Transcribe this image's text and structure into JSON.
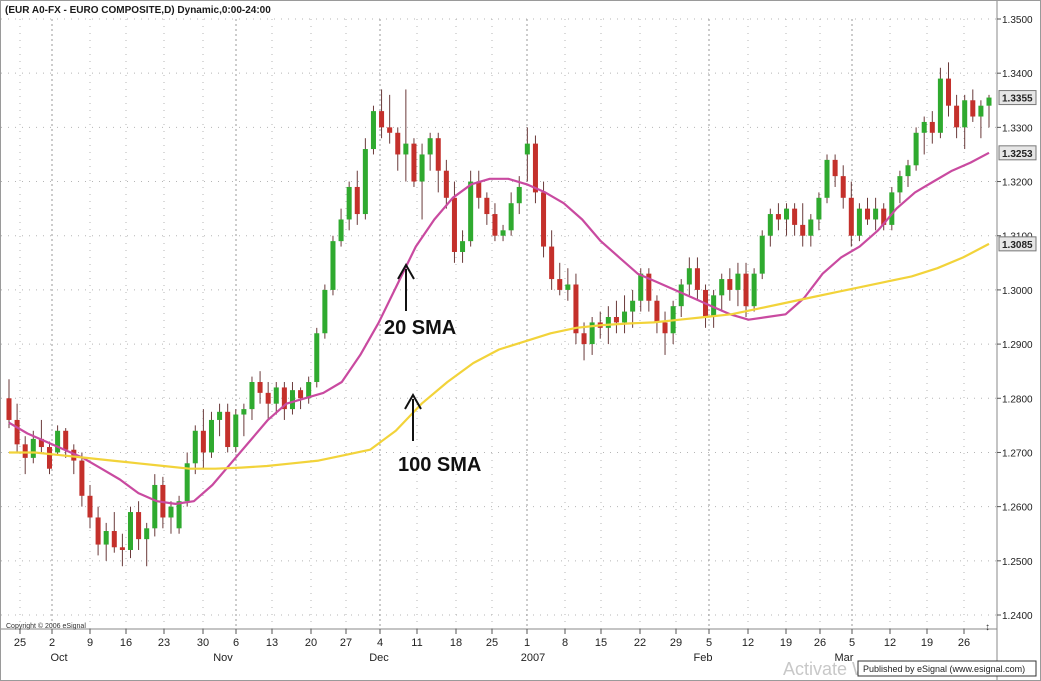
{
  "chart_data": {
    "type": "candlestick",
    "title": "(EUR A0-FX - EURO COMPOSITE,D) Dynamic,0:00-24:00",
    "ylim": [
      1.24,
      1.35
    ],
    "grid": true,
    "y_ticks": [
      "1.3500",
      "1.3400",
      "1.3300",
      "1.3200",
      "1.3100",
      "1.3000",
      "1.2900",
      "1.2800",
      "1.2700",
      "1.2600",
      "1.2500",
      "1.2400"
    ],
    "price_labels": [
      "1.3355",
      "1.3253",
      "1.3085"
    ],
    "x_tick_labels": [
      "25",
      "2",
      "9",
      "16",
      "23",
      "30",
      "6",
      "13",
      "20",
      "27",
      "4",
      "11",
      "18",
      "25",
      "1",
      "8",
      "15",
      "22",
      "29",
      "5",
      "12",
      "19",
      "26",
      "5",
      "12",
      "19",
      "26"
    ],
    "month_labels": [
      "Oct",
      "Nov",
      "Dec",
      "2007",
      "Feb",
      "Mar"
    ],
    "candles": [
      [
        1.28,
        1.2835,
        1.2745,
        1.276
      ],
      [
        1.276,
        1.279,
        1.27,
        1.2715
      ],
      [
        1.2715,
        1.273,
        1.266,
        1.269
      ],
      [
        1.269,
        1.274,
        1.268,
        1.2725
      ],
      [
        1.2725,
        1.276,
        1.27,
        1.271
      ],
      [
        1.271,
        1.272,
        1.266,
        1.267
      ],
      [
        1.27,
        1.275,
        1.2695,
        1.274
      ],
      [
        1.274,
        1.2745,
        1.269,
        1.2705
      ],
      [
        1.2705,
        1.2715,
        1.266,
        1.2685
      ],
      [
        1.2685,
        1.27,
        1.26,
        1.262
      ],
      [
        1.262,
        1.264,
        1.256,
        1.258
      ],
      [
        1.258,
        1.26,
        1.251,
        1.253
      ],
      [
        1.253,
        1.257,
        1.25,
        1.2555
      ],
      [
        1.2555,
        1.259,
        1.2515,
        1.2525
      ],
      [
        1.2525,
        1.255,
        1.249,
        1.252
      ],
      [
        1.252,
        1.26,
        1.2505,
        1.259
      ],
      [
        1.259,
        1.261,
        1.252,
        1.254
      ],
      [
        1.254,
        1.257,
        1.249,
        1.256
      ],
      [
        1.256,
        1.266,
        1.2545,
        1.264
      ],
      [
        1.264,
        1.2655,
        1.256,
        1.258
      ],
      [
        1.258,
        1.261,
        1.255,
        1.26
      ],
      [
        1.256,
        1.262,
        1.255,
        1.261
      ],
      [
        1.261,
        1.27,
        1.26,
        1.268
      ],
      [
        1.268,
        1.275,
        1.266,
        1.274
      ],
      [
        1.274,
        1.278,
        1.267,
        1.27
      ],
      [
        1.27,
        1.2775,
        1.269,
        1.276
      ],
      [
        1.276,
        1.279,
        1.273,
        1.2775
      ],
      [
        1.2775,
        1.279,
        1.27,
        1.271
      ],
      [
        1.271,
        1.278,
        1.27,
        1.277
      ],
      [
        1.277,
        1.279,
        1.273,
        1.278
      ],
      [
        1.278,
        1.284,
        1.276,
        1.283
      ],
      [
        1.283,
        1.285,
        1.279,
        1.281
      ],
      [
        1.281,
        1.283,
        1.276,
        1.279
      ],
      [
        1.279,
        1.283,
        1.277,
        1.282
      ],
      [
        1.282,
        1.283,
        1.276,
        1.278
      ],
      [
        1.278,
        1.283,
        1.277,
        1.2815
      ],
      [
        1.2815,
        1.282,
        1.278,
        1.28
      ],
      [
        1.28,
        1.284,
        1.279,
        1.283
      ],
      [
        1.283,
        1.293,
        1.282,
        1.292
      ],
      [
        1.292,
        1.301,
        1.291,
        1.3
      ],
      [
        1.3,
        1.31,
        1.299,
        1.309
      ],
      [
        1.309,
        1.315,
        1.308,
        1.313
      ],
      [
        1.313,
        1.32,
        1.311,
        1.319
      ],
      [
        1.319,
        1.322,
        1.312,
        1.314
      ],
      [
        1.314,
        1.328,
        1.313,
        1.326
      ],
      [
        1.326,
        1.334,
        1.325,
        1.333
      ],
      [
        1.333,
        1.337,
        1.328,
        1.33
      ],
      [
        1.33,
        1.336,
        1.327,
        1.329
      ],
      [
        1.329,
        1.33,
        1.322,
        1.325
      ],
      [
        1.325,
        1.337,
        1.32,
        1.327
      ],
      [
        1.327,
        1.328,
        1.319,
        1.32
      ],
      [
        1.32,
        1.327,
        1.313,
        1.325
      ],
      [
        1.325,
        1.329,
        1.322,
        1.328
      ],
      [
        1.328,
        1.329,
        1.318,
        1.322
      ],
      [
        1.322,
        1.324,
        1.315,
        1.317
      ],
      [
        1.317,
        1.32,
        1.305,
        1.307
      ],
      [
        1.307,
        1.311,
        1.305,
        1.309
      ],
      [
        1.309,
        1.322,
        1.308,
        1.32
      ],
      [
        1.32,
        1.322,
        1.315,
        1.317
      ],
      [
        1.317,
        1.318,
        1.312,
        1.314
      ],
      [
        1.314,
        1.316,
        1.309,
        1.31
      ],
      [
        1.31,
        1.312,
        1.309,
        1.311
      ],
      [
        1.311,
        1.318,
        1.31,
        1.316
      ],
      [
        1.316,
        1.321,
        1.314,
        1.319
      ],
      [
        1.325,
        1.33,
        1.32,
        1.327
      ],
      [
        1.327,
        1.3285,
        1.316,
        1.318
      ],
      [
        1.318,
        1.32,
        1.306,
        1.308
      ],
      [
        1.308,
        1.311,
        1.3,
        1.302
      ],
      [
        1.302,
        1.305,
        1.299,
        1.3
      ],
      [
        1.3,
        1.304,
        1.298,
        1.301
      ],
      [
        1.301,
        1.303,
        1.29,
        1.292
      ],
      [
        1.292,
        1.294,
        1.287,
        1.29
      ],
      [
        1.29,
        1.295,
        1.288,
        1.294
      ],
      [
        1.294,
        1.296,
        1.291,
        1.293
      ],
      [
        1.293,
        1.297,
        1.29,
        1.295
      ],
      [
        1.295,
        1.298,
        1.292,
        1.294
      ],
      [
        1.294,
        1.299,
        1.292,
        1.296
      ],
      [
        1.296,
        1.3,
        1.293,
        1.298
      ],
      [
        1.298,
        1.304,
        1.296,
        1.303
      ],
      [
        1.303,
        1.304,
        1.296,
        1.298
      ],
      [
        1.298,
        1.299,
        1.292,
        1.294
      ],
      [
        1.294,
        1.296,
        1.288,
        1.292
      ],
      [
        1.292,
        1.298,
        1.29,
        1.297
      ],
      [
        1.297,
        1.302,
        1.295,
        1.301
      ],
      [
        1.301,
        1.306,
        1.299,
        1.304
      ],
      [
        1.304,
        1.306,
        1.298,
        1.3
      ],
      [
        1.3,
        1.301,
        1.293,
        1.295
      ],
      [
        1.295,
        1.3,
        1.293,
        1.299
      ],
      [
        1.299,
        1.303,
        1.296,
        1.302
      ],
      [
        1.302,
        1.304,
        1.298,
        1.3
      ],
      [
        1.3,
        1.305,
        1.297,
        1.303
      ],
      [
        1.303,
        1.305,
        1.295,
        1.297
      ],
      [
        1.297,
        1.304,
        1.296,
        1.303
      ],
      [
        1.303,
        1.311,
        1.302,
        1.31
      ],
      [
        1.31,
        1.315,
        1.308,
        1.314
      ],
      [
        1.314,
        1.316,
        1.311,
        1.313
      ],
      [
        1.313,
        1.316,
        1.31,
        1.315
      ],
      [
        1.315,
        1.316,
        1.31,
        1.312
      ],
      [
        1.312,
        1.316,
        1.308,
        1.31
      ],
      [
        1.31,
        1.314,
        1.308,
        1.313
      ],
      [
        1.313,
        1.318,
        1.311,
        1.317
      ],
      [
        1.317,
        1.325,
        1.316,
        1.324
      ],
      [
        1.324,
        1.325,
        1.319,
        1.321
      ],
      [
        1.321,
        1.323,
        1.315,
        1.317
      ],
      [
        1.317,
        1.32,
        1.308,
        1.31
      ],
      [
        1.31,
        1.316,
        1.309,
        1.315
      ],
      [
        1.315,
        1.317,
        1.312,
        1.313
      ],
      [
        1.313,
        1.317,
        1.311,
        1.315
      ],
      [
        1.315,
        1.316,
        1.311,
        1.312
      ],
      [
        1.312,
        1.319,
        1.311,
        1.318
      ],
      [
        1.318,
        1.322,
        1.316,
        1.321
      ],
      [
        1.321,
        1.324,
        1.319,
        1.323
      ],
      [
        1.323,
        1.33,
        1.322,
        1.329
      ],
      [
        1.329,
        1.332,
        1.325,
        1.331
      ],
      [
        1.331,
        1.333,
        1.327,
        1.329
      ],
      [
        1.329,
        1.341,
        1.328,
        1.339
      ],
      [
        1.339,
        1.342,
        1.332,
        1.334
      ],
      [
        1.334,
        1.336,
        1.328,
        1.33
      ],
      [
        1.33,
        1.336,
        1.326,
        1.335
      ],
      [
        1.335,
        1.337,
        1.331,
        1.332
      ],
      [
        1.332,
        1.335,
        1.328,
        1.334
      ],
      [
        1.334,
        1.336,
        1.33,
        1.3355
      ]
    ],
    "series": [
      {
        "values": [
          1.2755,
          1.2735,
          1.272,
          1.2705,
          1.269,
          1.267,
          1.265,
          1.2625,
          1.261,
          1.2605,
          1.261,
          1.264,
          1.268,
          1.272,
          1.276,
          1.279,
          1.28,
          1.281,
          1.283,
          1.288,
          1.294,
          1.301,
          1.308,
          1.313,
          1.317,
          1.3195,
          1.3205,
          1.3205,
          1.3195,
          1.318,
          1.316,
          1.313,
          1.309,
          1.306,
          1.303,
          1.3015,
          1.3,
          1.2985,
          1.297,
          1.2955,
          1.2945,
          1.295,
          1.2955,
          1.2985,
          1.303,
          1.306,
          1.308,
          1.311,
          1.315,
          1.318,
          1.32,
          1.322,
          1.3235,
          1.3253
        ],
        "color": "#c94aa0"
      },
      {
        "values": [
          1.27,
          1.27,
          1.2695,
          1.269,
          1.2685,
          1.268,
          1.2675,
          1.267,
          1.267,
          1.2672,
          1.2675,
          1.268,
          1.2685,
          1.2695,
          1.2705,
          1.274,
          1.279,
          1.283,
          1.2865,
          1.289,
          1.2905,
          1.292,
          1.293,
          1.2935,
          1.2938,
          1.294,
          1.2945,
          1.295,
          1.2955,
          1.2965,
          1.2975,
          1.2985,
          1.2995,
          1.3005,
          1.3015,
          1.3025,
          1.304,
          1.306,
          1.3085
        ],
        "color": "#f2d33a"
      }
    ],
    "annotations": [
      "20 SMA",
      "100 SMA"
    ],
    "colors": {
      "up": "#2faa2f",
      "down": "#c4302b",
      "grid": "#b5b5b5",
      "price_box": "#e6e6e6"
    }
  },
  "copyright": "Copyright © 2006 eSignal",
  "published": "Published by eSignal (www.esignal.com)",
  "watermark": "Activate Wi"
}
